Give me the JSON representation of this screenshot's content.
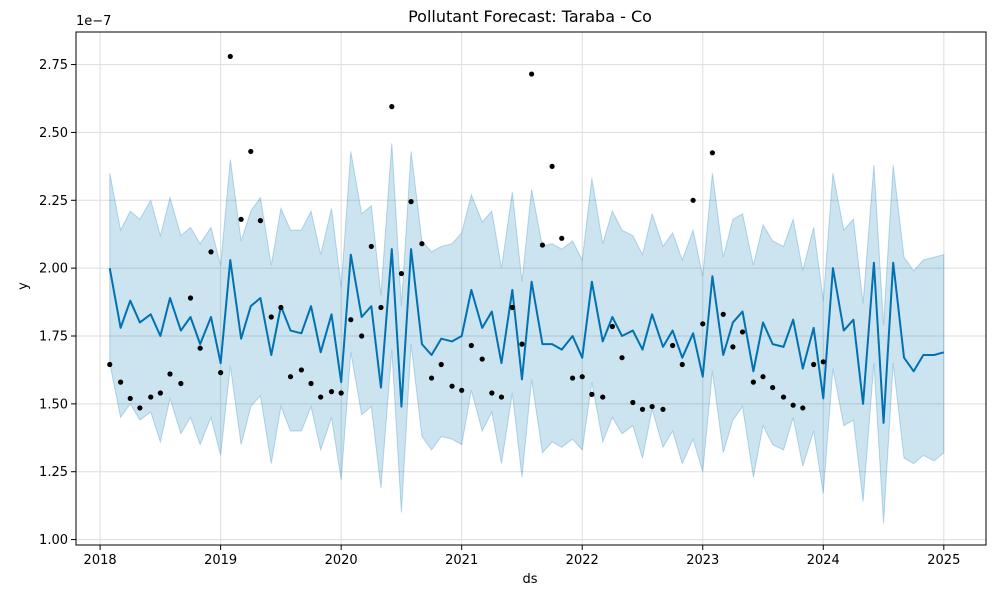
{
  "chart_data": {
    "type": "line",
    "title": "Pollutant Forecast: Taraba - Co",
    "xlabel": "ds",
    "ylabel": "y",
    "y_offset_label": "1e−7",
    "grid": true,
    "xlim": [
      2017.8,
      2025.35
    ],
    "ylim": [
      0.98,
      2.87
    ],
    "x_ticks": [
      2018,
      2019,
      2020,
      2021,
      2022,
      2023,
      2024,
      2025
    ],
    "x_tick_labels": [
      "2018",
      "2019",
      "2020",
      "2021",
      "2022",
      "2023",
      "2024",
      "2025"
    ],
    "y_ticks": [
      1.0,
      1.25,
      1.5,
      1.75,
      2.0,
      2.25,
      2.5,
      2.75
    ],
    "y_tick_labels": [
      "1.00",
      "1.25",
      "1.50",
      "1.75",
      "2.00",
      "2.25",
      "2.50",
      "2.75"
    ],
    "colors": {
      "forecast_line": "#0072B2",
      "interval_fill": "#0072B2",
      "observed_points": "#000000",
      "grid": "#dddddd"
    },
    "forecast": {
      "x": [
        2018.08,
        2018.17,
        2018.25,
        2018.33,
        2018.42,
        2018.5,
        2018.58,
        2018.67,
        2018.75,
        2018.83,
        2018.92,
        2019.0,
        2019.08,
        2019.17,
        2019.25,
        2019.33,
        2019.42,
        2019.5,
        2019.58,
        2019.67,
        2019.75,
        2019.83,
        2019.92,
        2020.0,
        2020.08,
        2020.17,
        2020.25,
        2020.33,
        2020.42,
        2020.5,
        2020.58,
        2020.67,
        2020.75,
        2020.83,
        2020.92,
        2021.0,
        2021.08,
        2021.17,
        2021.25,
        2021.33,
        2021.42,
        2021.5,
        2021.58,
        2021.67,
        2021.75,
        2021.83,
        2021.92,
        2022.0,
        2022.08,
        2022.17,
        2022.25,
        2022.33,
        2022.42,
        2022.5,
        2022.58,
        2022.67,
        2022.75,
        2022.83,
        2022.92,
        2023.0,
        2023.08,
        2023.17,
        2023.25,
        2023.33,
        2023.42,
        2023.5,
        2023.58,
        2023.67,
        2023.75,
        2023.83,
        2023.92,
        2024.0,
        2024.08,
        2024.17,
        2024.25,
        2024.33,
        2024.42,
        2024.5,
        2024.58,
        2024.67,
        2024.75,
        2024.83,
        2024.92,
        2025.0
      ],
      "yhat": [
        2.0,
        1.78,
        1.88,
        1.8,
        1.83,
        1.75,
        1.89,
        1.77,
        1.82,
        1.72,
        1.82,
        1.65,
        2.03,
        1.74,
        1.86,
        1.89,
        1.68,
        1.86,
        1.77,
        1.76,
        1.86,
        1.69,
        1.83,
        1.58,
        2.05,
        1.82,
        1.86,
        1.56,
        2.07,
        1.49,
        2.07,
        1.72,
        1.68,
        1.74,
        1.73,
        1.75,
        1.92,
        1.78,
        1.84,
        1.65,
        1.92,
        1.59,
        1.95,
        1.72,
        1.72,
        1.7,
        1.75,
        1.67,
        1.95,
        1.73,
        1.82,
        1.75,
        1.77,
        1.7,
        1.83,
        1.71,
        1.77,
        1.67,
        1.76,
        1.6,
        1.97,
        1.68,
        1.8,
        1.84,
        1.62,
        1.8,
        1.72,
        1.71,
        1.81,
        1.63,
        1.78,
        1.52,
        2.0,
        1.77,
        1.81,
        1.5,
        2.02,
        1.43,
        2.02,
        1.67,
        1.62,
        1.68,
        1.68,
        1.69
      ],
      "yhat_upper": [
        2.35,
        2.14,
        2.21,
        2.18,
        2.25,
        2.12,
        2.26,
        2.12,
        2.15,
        2.09,
        2.15,
        2.01,
        2.4,
        2.1,
        2.21,
        2.26,
        2.01,
        2.22,
        2.14,
        2.14,
        2.21,
        2.05,
        2.22,
        1.93,
        2.43,
        2.2,
        2.23,
        1.9,
        2.46,
        1.86,
        2.43,
        2.1,
        2.06,
        2.08,
        2.09,
        2.13,
        2.27,
        2.17,
        2.21,
        2.0,
        2.28,
        1.95,
        2.29,
        2.08,
        2.09,
        2.07,
        2.1,
        2.03,
        2.33,
        2.09,
        2.21,
        2.14,
        2.12,
        2.05,
        2.2,
        2.08,
        2.13,
        2.03,
        2.14,
        1.97,
        2.35,
        2.04,
        2.18,
        2.2,
        2.01,
        2.16,
        2.1,
        2.08,
        2.18,
        1.99,
        2.15,
        1.88,
        2.35,
        2.14,
        2.18,
        1.87,
        2.38,
        1.79,
        2.38,
        2.04,
        1.99,
        2.03,
        2.04,
        2.05
      ],
      "yhat_lower": [
        1.65,
        1.45,
        1.5,
        1.44,
        1.47,
        1.36,
        1.52,
        1.39,
        1.45,
        1.35,
        1.45,
        1.31,
        1.64,
        1.35,
        1.49,
        1.53,
        1.28,
        1.49,
        1.4,
        1.4,
        1.49,
        1.33,
        1.45,
        1.22,
        1.69,
        1.46,
        1.49,
        1.19,
        1.7,
        1.1,
        1.72,
        1.38,
        1.33,
        1.38,
        1.37,
        1.35,
        1.55,
        1.4,
        1.47,
        1.28,
        1.54,
        1.23,
        1.59,
        1.32,
        1.36,
        1.34,
        1.37,
        1.33,
        1.58,
        1.36,
        1.45,
        1.39,
        1.42,
        1.3,
        1.48,
        1.34,
        1.4,
        1.28,
        1.37,
        1.25,
        1.62,
        1.32,
        1.44,
        1.49,
        1.23,
        1.42,
        1.35,
        1.33,
        1.45,
        1.27,
        1.4,
        1.17,
        1.63,
        1.42,
        1.44,
        1.14,
        1.65,
        1.06,
        1.65,
        1.3,
        1.28,
        1.31,
        1.29,
        1.32
      ]
    },
    "observed": {
      "x": [
        2018.08,
        2018.17,
        2018.25,
        2018.33,
        2018.42,
        2018.5,
        2018.58,
        2018.67,
        2018.75,
        2018.83,
        2018.92,
        2019.0,
        2019.08,
        2019.17,
        2019.25,
        2019.33,
        2019.42,
        2019.5,
        2019.58,
        2019.67,
        2019.75,
        2019.83,
        2019.92,
        2020.0,
        2020.08,
        2020.17,
        2020.25,
        2020.33,
        2020.42,
        2020.5,
        2020.58,
        2020.67,
        2020.75,
        2020.83,
        2020.92,
        2021.0,
        2021.08,
        2021.17,
        2021.25,
        2021.33,
        2021.42,
        2021.5,
        2021.58,
        2021.67,
        2021.75,
        2021.83,
        2021.92,
        2022.0,
        2022.08,
        2022.17,
        2022.25,
        2022.33,
        2022.42,
        2022.5,
        2022.58,
        2022.67,
        2022.75,
        2022.83,
        2022.92,
        2023.0,
        2023.08,
        2023.17,
        2023.25,
        2023.33,
        2023.42,
        2023.5,
        2023.58,
        2023.67,
        2023.75,
        2023.83,
        2023.92,
        2024.0
      ],
      "y": [
        1.645,
        1.58,
        1.52,
        1.485,
        1.525,
        1.54,
        1.61,
        1.575,
        1.89,
        1.705,
        2.06,
        1.615,
        2.78,
        2.18,
        2.43,
        2.175,
        1.82,
        1.855,
        1.6,
        1.625,
        1.575,
        1.525,
        1.545,
        1.54,
        1.81,
        1.75,
        2.08,
        1.855,
        2.595,
        1.98,
        2.245,
        2.09,
        1.595,
        1.645,
        1.565,
        1.55,
        1.715,
        1.665,
        1.54,
        1.525,
        1.855,
        1.72,
        2.715,
        2.085,
        2.375,
        2.11,
        1.595,
        1.6,
        1.535,
        1.525,
        1.785,
        1.67,
        1.505,
        1.48,
        1.49,
        1.48,
        1.715,
        1.645,
        2.25,
        1.795,
        2.425,
        1.83,
        1.71,
        1.765,
        1.58,
        1.6,
        1.56,
        1.525,
        1.495,
        1.485,
        1.645,
        1.655
      ]
    }
  }
}
